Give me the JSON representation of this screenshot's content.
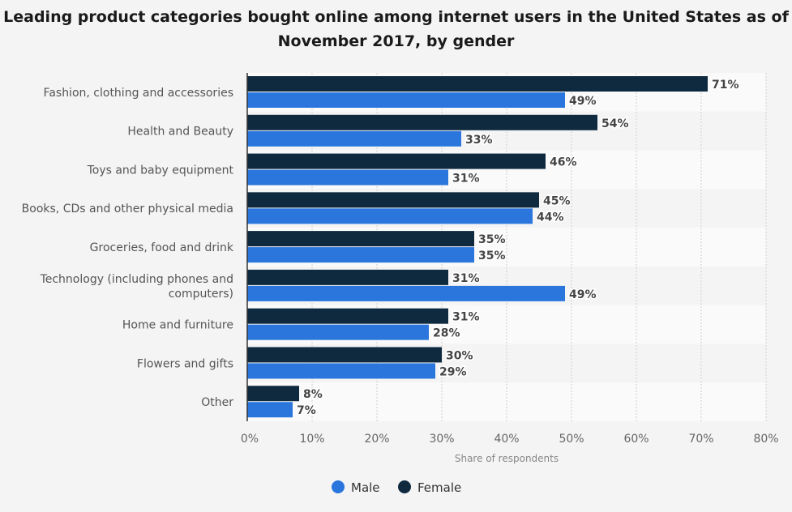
{
  "chart_data": {
    "type": "bar",
    "orientation": "horizontal",
    "title": "Leading product categories bought online among internet users in the United States as of November 2017, by gender",
    "xlabel": "Share of respondents",
    "ylabel": "",
    "xlim": [
      0,
      80
    ],
    "x_ticks": [
      "0%",
      "10%",
      "20%",
      "30%",
      "40%",
      "50%",
      "60%",
      "70%",
      "80%"
    ],
    "grid": true,
    "legend_position": "bottom",
    "categories": [
      [
        "Fashion, clothing and accessories"
      ],
      [
        "Health and Beauty"
      ],
      [
        "Toys and baby equipment"
      ],
      [
        "Books, CDs and other physical media"
      ],
      [
        "Groceries, food and drink"
      ],
      [
        "Technology (including phones and",
        "computers)"
      ],
      [
        "Home and furniture"
      ],
      [
        "Flowers and gifts"
      ],
      [
        "Other"
      ]
    ],
    "series": [
      {
        "name": "Female",
        "color": "#0f2a3f",
        "values": [
          71,
          54,
          46,
          45,
          35,
          31,
          31,
          30,
          8
        ]
      },
      {
        "name": "Male",
        "color": "#2a76dd",
        "values": [
          49,
          33,
          31,
          44,
          35,
          49,
          28,
          29,
          7
        ]
      }
    ],
    "legend_order": [
      "Male",
      "Female"
    ]
  }
}
